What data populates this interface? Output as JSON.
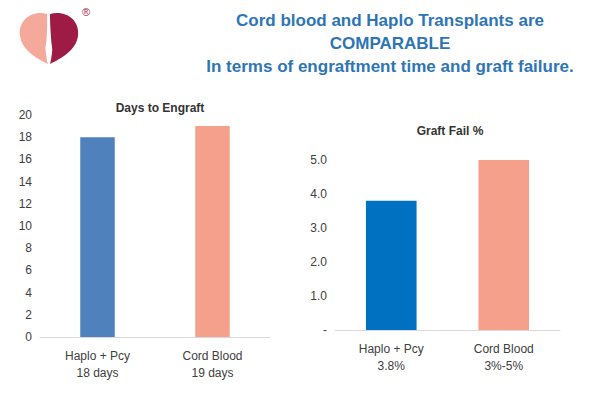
{
  "title": "Cord blood and Haplo Transplants are\nCOMPARABLE\nIn terms of engraftment time and graft failure.",
  "logo_mark": "®",
  "chart_data": [
    {
      "type": "bar",
      "title": "Days to Engraft",
      "categories": [
        "Haplo + Pcy\n18 days",
        "Cord Blood\n19 days"
      ],
      "values": [
        18,
        19
      ],
      "colors": [
        "#4f81bd",
        "#f4a08a"
      ],
      "ylim": [
        0,
        20
      ],
      "yticks": [
        0,
        2,
        4,
        6,
        8,
        10,
        12,
        14,
        16,
        18,
        20
      ],
      "grid": false
    },
    {
      "type": "bar",
      "title": "Graft Fail %",
      "categories": [
        "Haplo + Pcy\n3.8%",
        "Cord Blood\n3%-5%"
      ],
      "values": [
        3.8,
        5.0
      ],
      "colors": [
        "#0070c0",
        "#f4a08a"
      ],
      "ylim": [
        0,
        5
      ],
      "yticks": [
        {
          "value": 0,
          "label": "-"
        },
        {
          "value": 1,
          "label": "1.0"
        },
        {
          "value": 2,
          "label": "2.0"
        },
        {
          "value": 3,
          "label": "3.0"
        },
        {
          "value": 4,
          "label": "4.0"
        },
        {
          "value": 5,
          "label": "5.0"
        }
      ],
      "grid": false
    }
  ]
}
